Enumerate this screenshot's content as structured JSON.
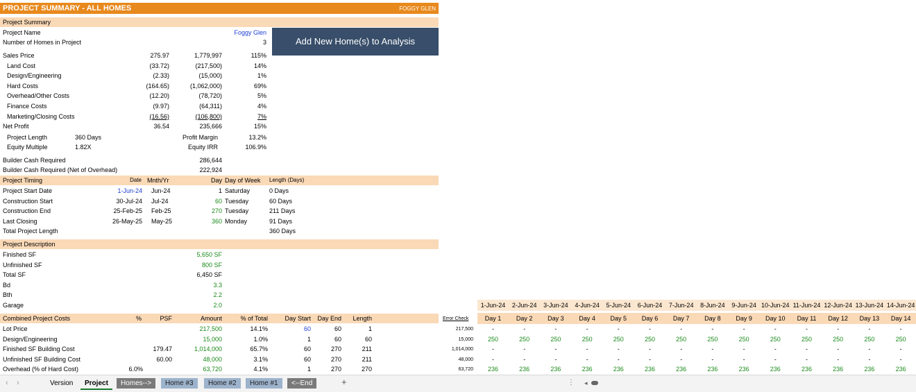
{
  "title": {
    "text": "PROJECT SUMMARY - ALL HOMES",
    "project": "FOGGY GLEN"
  },
  "add_button": "Add New Home(s) to Analysis",
  "summary": {
    "header": "Project Summary",
    "project_name_label": "Project Name",
    "project_name": "Foggy Glen",
    "homes_label": "Number of Homes in Project",
    "homes": "3",
    "rows": [
      {
        "label": "Sales Price",
        "psf": "275.97",
        "amount": "1,779,997",
        "pct": "115%"
      },
      {
        "label": "Land Cost",
        "psf": "(33.72)",
        "amount": "(217,500)",
        "pct": "14%"
      },
      {
        "label": "Design/Engineering",
        "psf": "(2.33)",
        "amount": "(15,000)",
        "pct": "1%"
      },
      {
        "label": "Hard Costs",
        "psf": "(164.65)",
        "amount": "(1,062,000)",
        "pct": "69%"
      },
      {
        "label": "Overhead/Other Costs",
        "psf": "(12.20)",
        "amount": "(78,720)",
        "pct": "5%"
      },
      {
        "label": "Finance Costs",
        "psf": "(9.97)",
        "amount": "(64,311)",
        "pct": "4%"
      },
      {
        "label": "Marketing/Closing Costs",
        "psf": "(16.56)",
        "amount": "(106,800)",
        "pct": "7%"
      },
      {
        "label": "Net Profit",
        "psf": "36.54",
        "amount": "235,666",
        "pct": "15%"
      }
    ],
    "project_length_label": "Project Length",
    "project_length": "360 Days",
    "profit_margin_label": "Profit Margin",
    "profit_margin": "13.2%",
    "equity_multiple_label": "Equity Multiple",
    "equity_multiple": "1.82X",
    "equity_irr_label": "Equity IRR",
    "equity_irr": "106.9%",
    "cash_required_label": "Builder Cash Required",
    "cash_required": "286,644",
    "cash_required_net_label": "Builder Cash Required (Net of Overhead)",
    "cash_required_net": "222,924"
  },
  "timing": {
    "header": "Project Timing",
    "col_date": "Date",
    "col_mnth": "Mnth/Yr",
    "col_day": "Day",
    "col_dow": "Day of Week",
    "col_length": "Length (Days)",
    "rows": [
      {
        "label": "Project Start Date",
        "date": "1-Jun-24",
        "mnth": "Jun-24",
        "day": "1",
        "dow": "Saturday",
        "length": "0 Days"
      },
      {
        "label": "Construction Start",
        "date": "30-Jul-24",
        "mnth": "Jul-24",
        "day": "60",
        "dow": "Tuesday",
        "length": "60 Days"
      },
      {
        "label": "Construction End",
        "date": "25-Feb-25",
        "mnth": "Feb-25",
        "day": "270",
        "dow": "Tuesday",
        "length": "211 Days"
      },
      {
        "label": "Last Closing",
        "date": "26-May-25",
        "mnth": "May-25",
        "day": "360",
        "dow": "Monday",
        "length": "91 Days"
      }
    ],
    "total_label": "Total Project Length",
    "total": "360 Days"
  },
  "description": {
    "header": "Project Description",
    "rows": [
      {
        "label": "Finished SF",
        "value": "5,650 SF"
      },
      {
        "label": "Unfinished SF",
        "value": "800 SF"
      },
      {
        "label": "Total SF",
        "value": "6,450 SF"
      },
      {
        "label": "Bd",
        "value": "3.3"
      },
      {
        "label": "Bth",
        "value": "2.2"
      },
      {
        "label": "Garage",
        "value": "2.0"
      }
    ]
  },
  "costs": {
    "header": "Combined Project Costs",
    "col_pct": "%",
    "col_psf": "PSF",
    "col_amount": "Amount",
    "col_total": "% of Total",
    "col_start": "Day Start",
    "col_end": "Day End",
    "col_length": "Length",
    "rows": [
      {
        "label": "Lot Price",
        "pct": "",
        "psf": "",
        "amount": "217,500",
        "total": "14.1%",
        "start": "60",
        "end": "60",
        "length": "1"
      },
      {
        "label": "Design/Engineering",
        "pct": "",
        "psf": "",
        "amount": "15,000",
        "total": "1.0%",
        "start": "1",
        "end": "60",
        "length": "60"
      },
      {
        "label": "Finished SF Building Cost",
        "pct": "",
        "psf": "179.47",
        "amount": "1,014,000",
        "total": "65.7%",
        "start": "60",
        "end": "270",
        "length": "211"
      },
      {
        "label": "Unfinished SF Building Cost",
        "pct": "",
        "psf": "60.00",
        "amount": "48,000",
        "total": "3.1%",
        "start": "60",
        "end": "270",
        "length": "211"
      },
      {
        "label": "Overhead (% of Hard Cost)",
        "pct": "6.0%",
        "psf": "",
        "amount": "63,720",
        "total": "4.1%",
        "start": "1",
        "end": "270",
        "length": "270"
      }
    ]
  },
  "timeline": {
    "error_check_label": "Error Check",
    "error_values": [
      "217,500",
      "15,000",
      "1,014,000",
      "48,000",
      "63,720"
    ],
    "dates": [
      "1-Jun-24",
      "2-Jun-24",
      "3-Jun-24",
      "4-Jun-24",
      "5-Jun-24",
      "6-Jun-24",
      "7-Jun-24",
      "8-Jun-24",
      "9-Jun-24",
      "10-Jun-24",
      "11-Jun-24",
      "12-Jun-24",
      "13-Jun-24",
      "14-Jun-24"
    ],
    "days": [
      "Day 1",
      "Day 2",
      "Day 3",
      "Day 4",
      "Day 5",
      "Day 6",
      "Day 7",
      "Day 8",
      "Day 9",
      "Day 10",
      "Day 11",
      "Day 12",
      "Day 13",
      "Day 14"
    ],
    "row_values": [
      "-",
      "250",
      "-",
      "-",
      "236"
    ]
  },
  "tabs": {
    "items": [
      {
        "label": "Version",
        "style": "plain"
      },
      {
        "label": "Project",
        "style": "active"
      },
      {
        "label": "Homes-->",
        "style": "gray"
      },
      {
        "label": "Home #3",
        "style": "color"
      },
      {
        "label": "Home #2",
        "style": "color"
      },
      {
        "label": "Home #1",
        "style": "color"
      },
      {
        "label": "<--End",
        "style": "gray"
      }
    ],
    "add_symbol": "+"
  }
}
